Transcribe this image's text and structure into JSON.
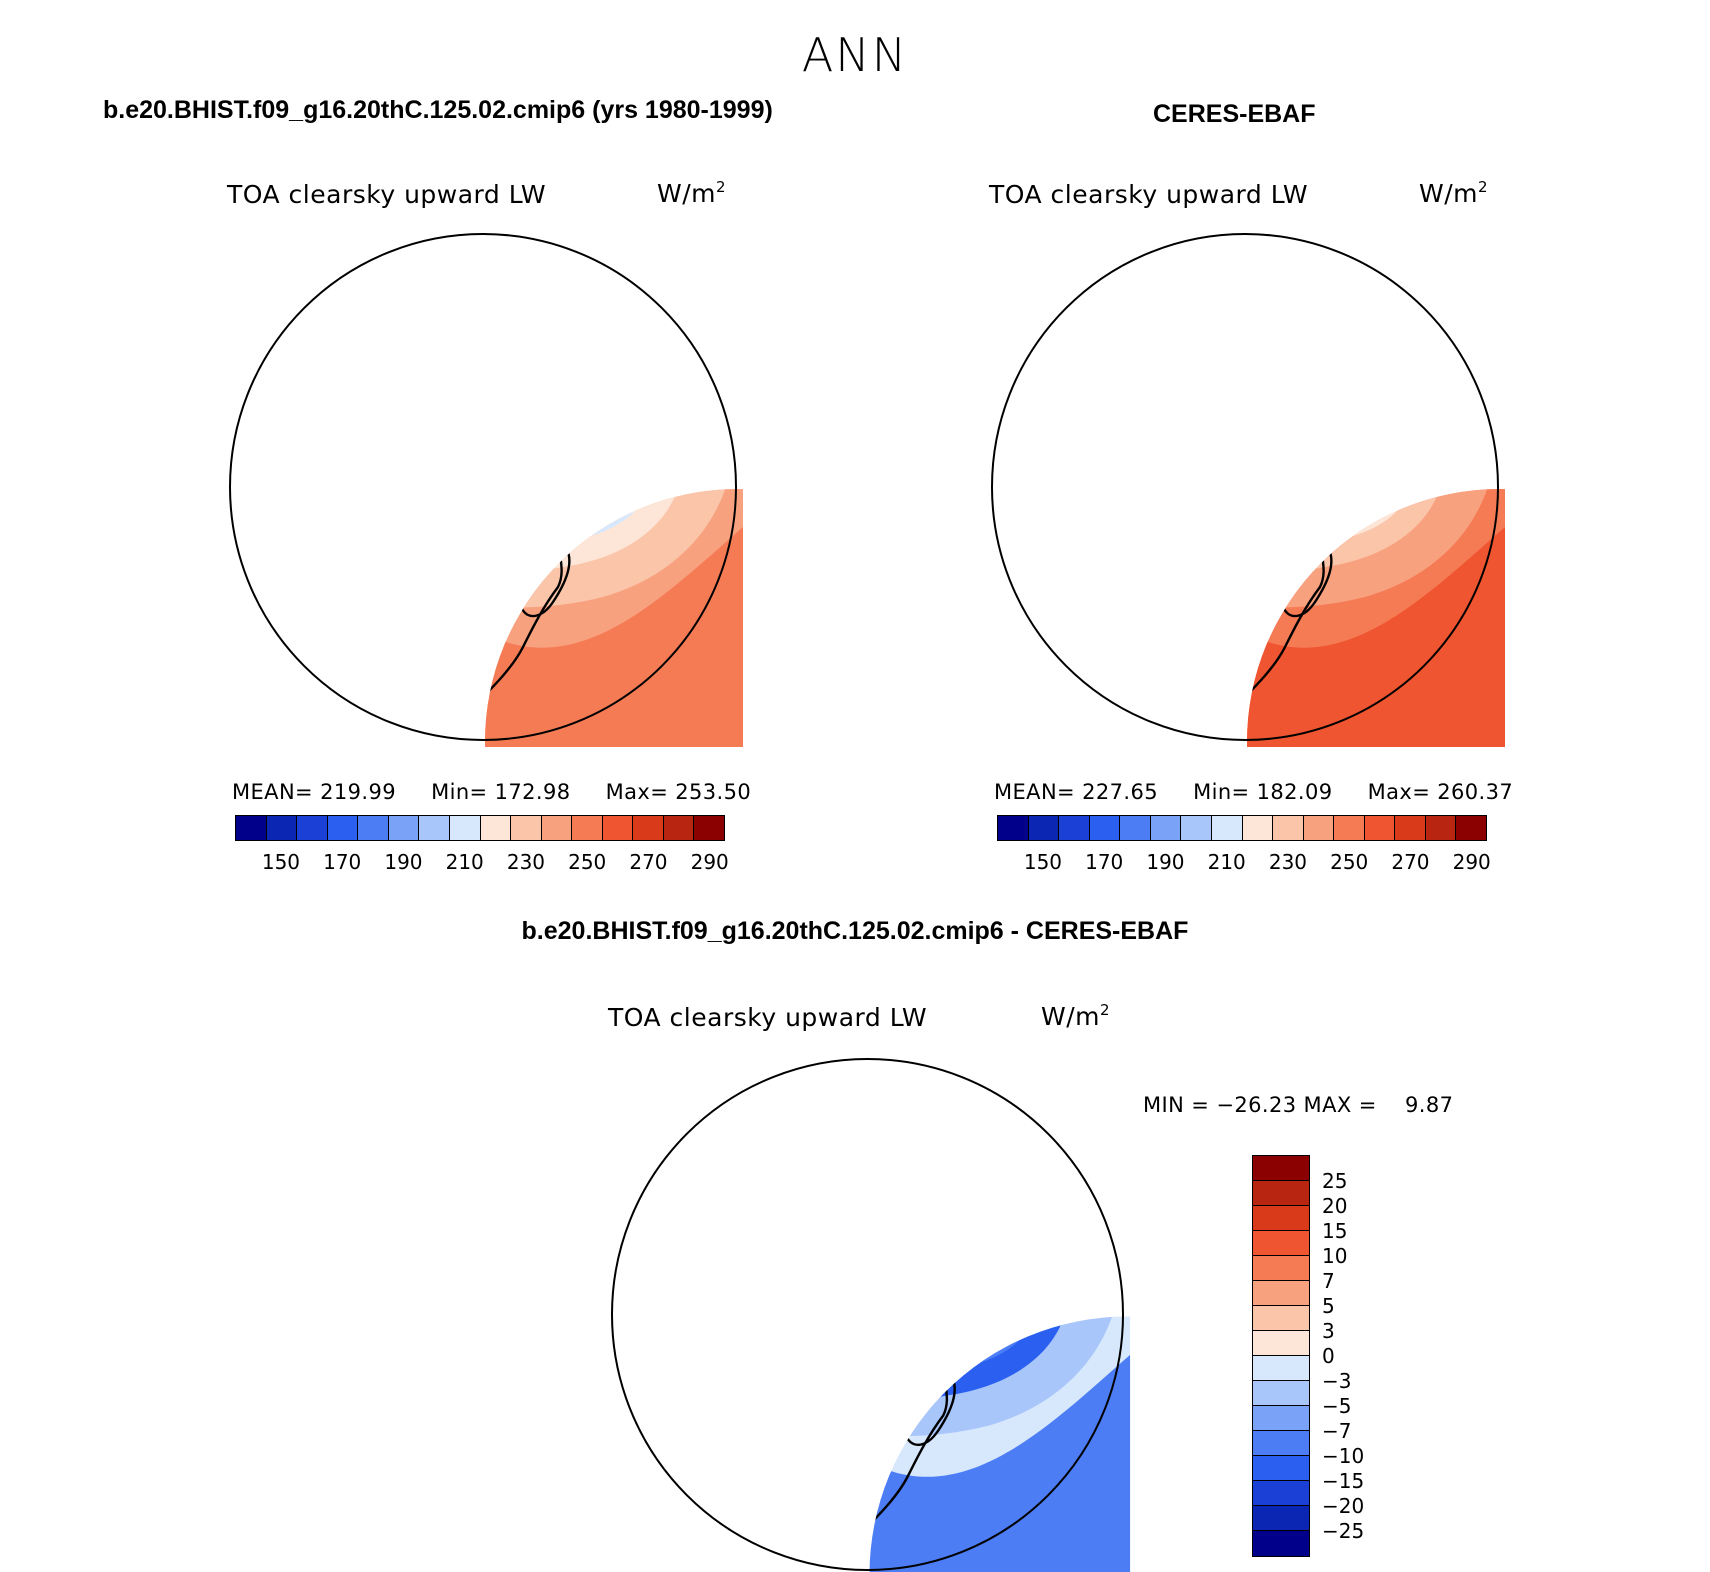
{
  "page_title": "ANN",
  "left_panel": {
    "heading": "b.e20.BHIST.f09_g16.20thC.125.02.cmip6 (yrs 1980-1999)",
    "variable": "TOA clearsky upward LW",
    "units_base": "W/m",
    "units_exp": "2",
    "mean_text": "MEAN= 219.99",
    "min_text": "Min= 172.98",
    "max_text": "Max= 253.50",
    "stats": {
      "mean": 219.99,
      "min": 172.98,
      "max": 253.5
    }
  },
  "right_panel": {
    "heading": "CERES-EBAF",
    "variable": "TOA clearsky upward LW",
    "units_base": "W/m",
    "units_exp": "2",
    "mean_text": "MEAN= 227.65",
    "min_text": "Min= 182.09",
    "max_text": "Max= 260.37",
    "stats": {
      "mean": 227.65,
      "min": 182.09,
      "max": 260.37
    }
  },
  "diff_panel": {
    "heading": "b.e20.BHIST.f09_g16.20thC.125.02.cmip6 - CERES-EBAF",
    "variable": "TOA clearsky upward LW",
    "units_base": "W/m",
    "units_exp": "2",
    "minmax_text": "MIN = −26.23 MAX =    9.87",
    "stats": {
      "min": -26.23,
      "max": 9.87
    }
  },
  "colorbar_abs": {
    "labels": [
      "150",
      "170",
      "190",
      "210",
      "230",
      "250",
      "270",
      "290"
    ],
    "colors": [
      "#00008b",
      "#0a26b3",
      "#1a40d6",
      "#2a5ff0",
      "#4c7df5",
      "#7aa3f7",
      "#a9c6fb",
      "#d7e8fd",
      "#fde6d7",
      "#fbc5aa",
      "#f8a17f",
      "#f57b55",
      "#ef5530",
      "#d93a1a",
      "#b82612",
      "#8b0000"
    ]
  },
  "colorbar_diff": {
    "labels": [
      "25",
      "20",
      "15",
      "10",
      "7",
      "5",
      "3",
      "0",
      "−3",
      "−5",
      "−7",
      "−10",
      "−15",
      "−20",
      "−25"
    ],
    "colors": [
      "#8b0000",
      "#b82612",
      "#d93a1a",
      "#ef5530",
      "#f57b55",
      "#f8a17f",
      "#fbc5aa",
      "#fde6d7",
      "#d7e8fd",
      "#a9c6fb",
      "#7aa3f7",
      "#4c7df5",
      "#2a5ff0",
      "#1a40d6",
      "#0a26b3",
      "#00008b"
    ]
  },
  "map_colors": {
    "left": {
      "outer": "#f8a17f",
      "ring": "#fbc5aa",
      "warmband": "#f57b55",
      "pale": "#fde6d7",
      "lightblue": "#d7e8fd",
      "midblue": "#a9c6fb",
      "deepblue": "#7aa3f7",
      "core": "#4c7df5",
      "hotspot": "#2a5ff0"
    },
    "right": {
      "outer": "#f57b55",
      "ring": "#f8a17f",
      "warmband": "#ef5530",
      "pale": "#fbc5aa",
      "lightblue": "#fde6d7",
      "midblue": "#d7e8fd",
      "deepblue": "#a9c6fb",
      "core": "#7aa3f7",
      "hotspot": "#4c7df5"
    },
    "diff": {
      "outer": "#d7e8fd",
      "ring": "#a9c6fb",
      "warmband": "#4c7df5",
      "pale": "#2a5ff0",
      "lightblue": "#4c7df5",
      "midblue": "#2a5ff0",
      "deepblue": "#a9c6fb",
      "core": "#a9c6fb",
      "hotspot": "#1a40d6"
    }
  }
}
